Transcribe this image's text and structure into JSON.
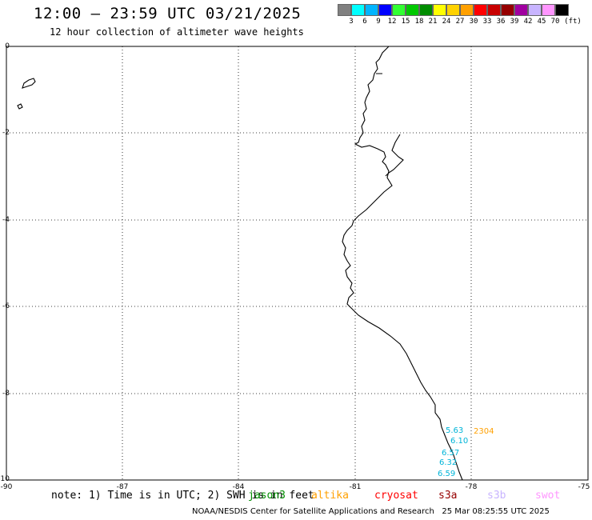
{
  "header": {
    "title": "12:00 — 23:59 UTC 03/21/2025",
    "subtitle": "12 hour collection of altimeter wave heights"
  },
  "legend": {
    "unit_label": "(ft)",
    "colors": [
      "#808080",
      "#00ffff",
      "#00b4ff",
      "#0000ff",
      "#32ff32",
      "#00c800",
      "#008c00",
      "#ffff00",
      "#ffd200",
      "#ffa000",
      "#ff0000",
      "#c80000",
      "#960000",
      "#a000a0",
      "#c8b4ff",
      "#ff96ff",
      "#000000"
    ],
    "labels": [
      "3",
      "6",
      "9",
      "12",
      "15",
      "18",
      "21",
      "24",
      "27",
      "30",
      "33",
      "36",
      "39",
      "42",
      "45",
      "70"
    ]
  },
  "map": {
    "lon_ticks": [
      "-90",
      "-87",
      "-84",
      "-81",
      "-78",
      "-75"
    ],
    "lat_ticks": [
      "0",
      "-2",
      "-4",
      "-6",
      "-8",
      "-10"
    ],
    "observations": [
      {
        "value": "5.63",
        "color": "#00b4d8"
      },
      {
        "value": "6.10",
        "color": "#00b4d8"
      },
      {
        "value": "6.57",
        "color": "#00b4d8"
      },
      {
        "value": "6.32",
        "color": "#00b4d8"
      },
      {
        "value": "6.59",
        "color": "#00b4d8"
      }
    ],
    "time_label": {
      "value": "2304",
      "color": "#ffa000"
    }
  },
  "footer": {
    "note": "note: 1) Time is in UTC; 2) SWH is in feet",
    "satellites": [
      {
        "name": "jason3",
        "color": "#008c00"
      },
      {
        "name": "altika",
        "color": "#ffa000"
      },
      {
        "name": "cryosat",
        "color": "#ff0000"
      },
      {
        "name": "s3a",
        "color": "#960000"
      },
      {
        "name": "s3b",
        "color": "#c8b4ff"
      },
      {
        "name": "swot",
        "color": "#ff96ff"
      }
    ],
    "credit": "NOAA/NESDIS Center for Satellite Applications and Research",
    "timestamp": "25 Mar 08:25:55 UTC 2025"
  }
}
